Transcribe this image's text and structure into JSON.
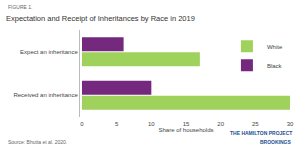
{
  "chart_data": {
    "type": "bar",
    "orientation": "horizontal",
    "title": "Expectation and Receipt of Inheritances by Race in 2019",
    "annotations": [
      "FIGURE 1.",
      "Source: Bhutta et al. 2020.",
      "THE HAMILTON PROJECT",
      "BROOKINGS"
    ],
    "x_label": "Share of households",
    "categories": [
      "Expect an inheritance",
      "Received an inheritance"
    ],
    "series": [
      {
        "name": "White",
        "color": "#9fd25c",
        "values": [
          17,
          30
        ]
      },
      {
        "name": "Black",
        "color": "#74297f",
        "values": [
          6,
          10
        ]
      }
    ],
    "xlim": [
      0,
      30
    ],
    "xticks": [
      0,
      5,
      10,
      15,
      20,
      25,
      30
    ],
    "grid": false,
    "legend": "upper right"
  }
}
